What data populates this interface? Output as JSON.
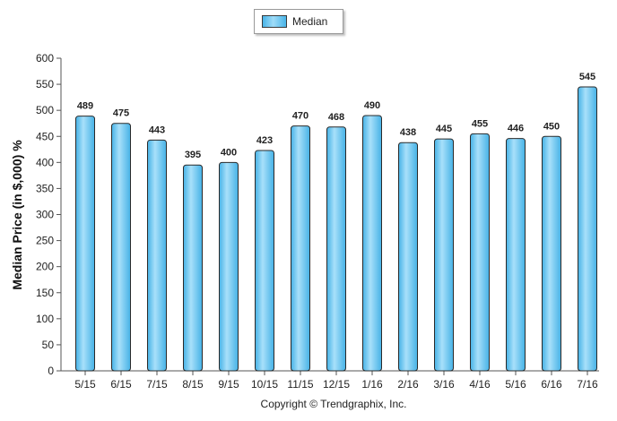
{
  "legend": {
    "label": "Median"
  },
  "copyright": "Copyright © Trendgraphix, Inc.",
  "chart_data": {
    "type": "bar",
    "title": "",
    "xlabel": "",
    "ylabel": "Median Price (in $,000) %",
    "ylim": [
      0,
      600
    ],
    "yticks": [
      0,
      50,
      100,
      150,
      200,
      250,
      300,
      350,
      400,
      450,
      500,
      550,
      600
    ],
    "grid": false,
    "legend_position": "top-center",
    "categories": [
      "5/15",
      "6/15",
      "7/15",
      "8/15",
      "9/15",
      "10/15",
      "11/15",
      "12/15",
      "1/16",
      "2/16",
      "3/16",
      "4/16",
      "5/16",
      "6/16",
      "7/16"
    ],
    "series": [
      {
        "name": "Median",
        "values": [
          489,
          475,
          443,
          395,
          400,
          423,
          470,
          468,
          490,
          438,
          445,
          455,
          446,
          450,
          545
        ]
      }
    ],
    "colors": {
      "bar_fill": "#5cbfee",
      "bar_highlight": "#a8e0fa",
      "bar_edge": "#2a2a2a"
    }
  }
}
